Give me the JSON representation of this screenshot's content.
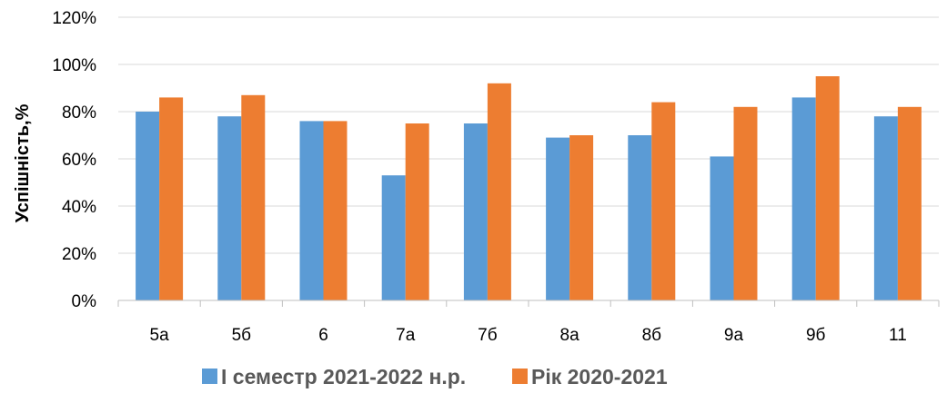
{
  "chart_data": {
    "type": "bar",
    "title": "",
    "xlabel": "",
    "ylabel": "Успішність,%",
    "categories": [
      "5а",
      "5б",
      "6",
      "7а",
      "7б",
      "8а",
      "8б",
      "9а",
      "9б",
      "11"
    ],
    "series": [
      {
        "name": "І семестр 2021-2022 н.р.",
        "color": "#5B9BD5",
        "values": [
          80,
          78,
          76,
          53,
          75,
          69,
          70,
          61,
          86,
          78
        ]
      },
      {
        "name": "Рік 2020-2021",
        "color": "#ED7D31",
        "values": [
          86,
          87,
          76,
          75,
          92,
          70,
          84,
          82,
          95,
          82
        ]
      }
    ],
    "ylim": [
      0,
      120
    ],
    "yticks": [
      0,
      20,
      40,
      60,
      80,
      100,
      120
    ],
    "ytick_labels": [
      "0%",
      "20%",
      "40%",
      "60%",
      "80%",
      "100%",
      "120%"
    ],
    "grid": true,
    "legend_position": "bottom"
  }
}
